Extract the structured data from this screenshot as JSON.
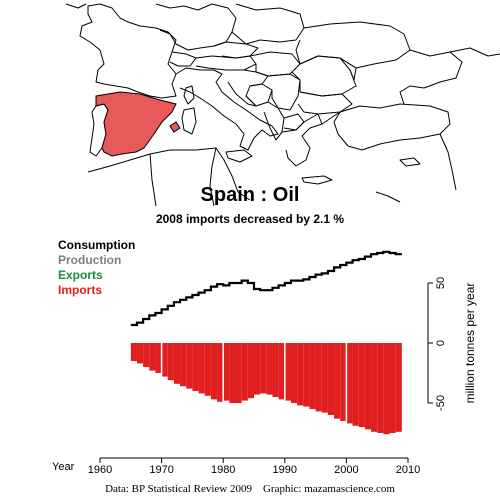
{
  "chart_data": {
    "type": "area",
    "title": "Spain :  Oil",
    "subtitle": "2008 imports decreased by 2.1 %",
    "legend": {
      "placement": "top-left",
      "entries": [
        {
          "name": "Consumption",
          "color": "#000000"
        },
        {
          "name": "Production",
          "color": "#808080"
        },
        {
          "name": "Exports",
          "color": "#1a8a3c"
        },
        {
          "name": "Imports",
          "color": "#e02020"
        }
      ]
    },
    "xlabel": "Year",
    "ylabel": "million tonnes per year",
    "xlim": [
      1960,
      2010
    ],
    "ylim": [
      -85,
      85
    ],
    "x_ticks": [
      1960,
      1970,
      1980,
      1990,
      2000,
      2010
    ],
    "y_ticks": [
      50,
      0,
      -50
    ],
    "x": [
      1965,
      1966,
      1967,
      1968,
      1969,
      1970,
      1971,
      1972,
      1973,
      1974,
      1975,
      1976,
      1977,
      1978,
      1979,
      1980,
      1981,
      1982,
      1983,
      1984,
      1985,
      1986,
      1987,
      1988,
      1989,
      1990,
      1991,
      1992,
      1993,
      1994,
      1995,
      1996,
      1997,
      1998,
      1999,
      2000,
      2001,
      2002,
      2003,
      2004,
      2005,
      2006,
      2007,
      2008
    ],
    "series": [
      {
        "name": "Consumption",
        "color": "#000000",
        "values": [
          15,
          17,
          20,
          23,
          25,
          28,
          31,
          34,
          36,
          38,
          40,
          42,
          44,
          47,
          49,
          48,
          50,
          50,
          52,
          50,
          45,
          44,
          44,
          46,
          48,
          50,
          52,
          52,
          53,
          55,
          57,
          58,
          60,
          63,
          65,
          67,
          69,
          70,
          72,
          74,
          75,
          76,
          75,
          74
        ]
      },
      {
        "name": "Imports",
        "color": "#e02020",
        "values": [
          -15,
          -17,
          -20,
          -23,
          -25,
          -28,
          -31,
          -34,
          -36,
          -38,
          -40,
          -42,
          -44,
          -47,
          -49,
          -48,
          -50,
          -50,
          -48,
          -46,
          -43,
          -42,
          -43,
          -45,
          -47,
          -48,
          -50,
          -52,
          -53,
          -55,
          -57,
          -58,
          -60,
          -63,
          -65,
          -67,
          -69,
          -70,
          -72,
          -74,
          -75,
          -76,
          -75,
          -74
        ]
      }
    ],
    "vertical_gridlines": [
      1970,
      1980,
      1990,
      2000
    ]
  },
  "credit": "Data: BP Statistical Review 2009    Graphic: mazamascience.com",
  "colors": {
    "spain_fill": "#e85a5a",
    "map_stroke": "#000000",
    "imports": "#e02020",
    "consumption": "#000000"
  }
}
